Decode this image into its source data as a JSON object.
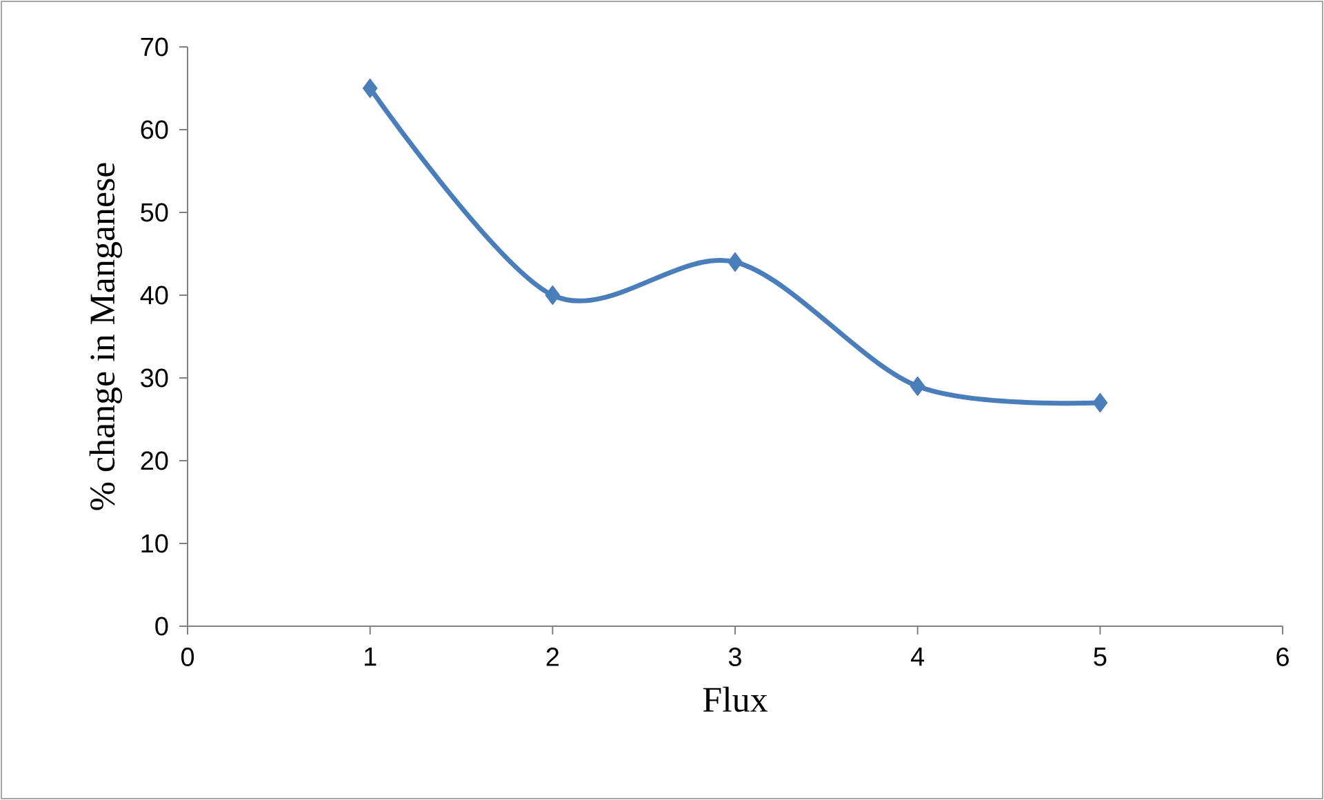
{
  "chart_data": {
    "type": "line",
    "xlabel": "Flux",
    "ylabel": "% change in Manganese",
    "x": [
      1,
      2,
      3,
      4,
      5
    ],
    "series": [
      {
        "color": "#4a7ebb",
        "values": [
          65,
          40,
          44,
          29,
          27
        ]
      }
    ],
    "xlim": [
      0,
      6
    ],
    "xticks": [
      0,
      1,
      2,
      3,
      4,
      5,
      6
    ],
    "ylim": [
      0,
      70
    ],
    "yticks": [
      0,
      10,
      20,
      30,
      40,
      50,
      60,
      70
    ],
    "marker": "diamond",
    "line_style": "solid"
  }
}
